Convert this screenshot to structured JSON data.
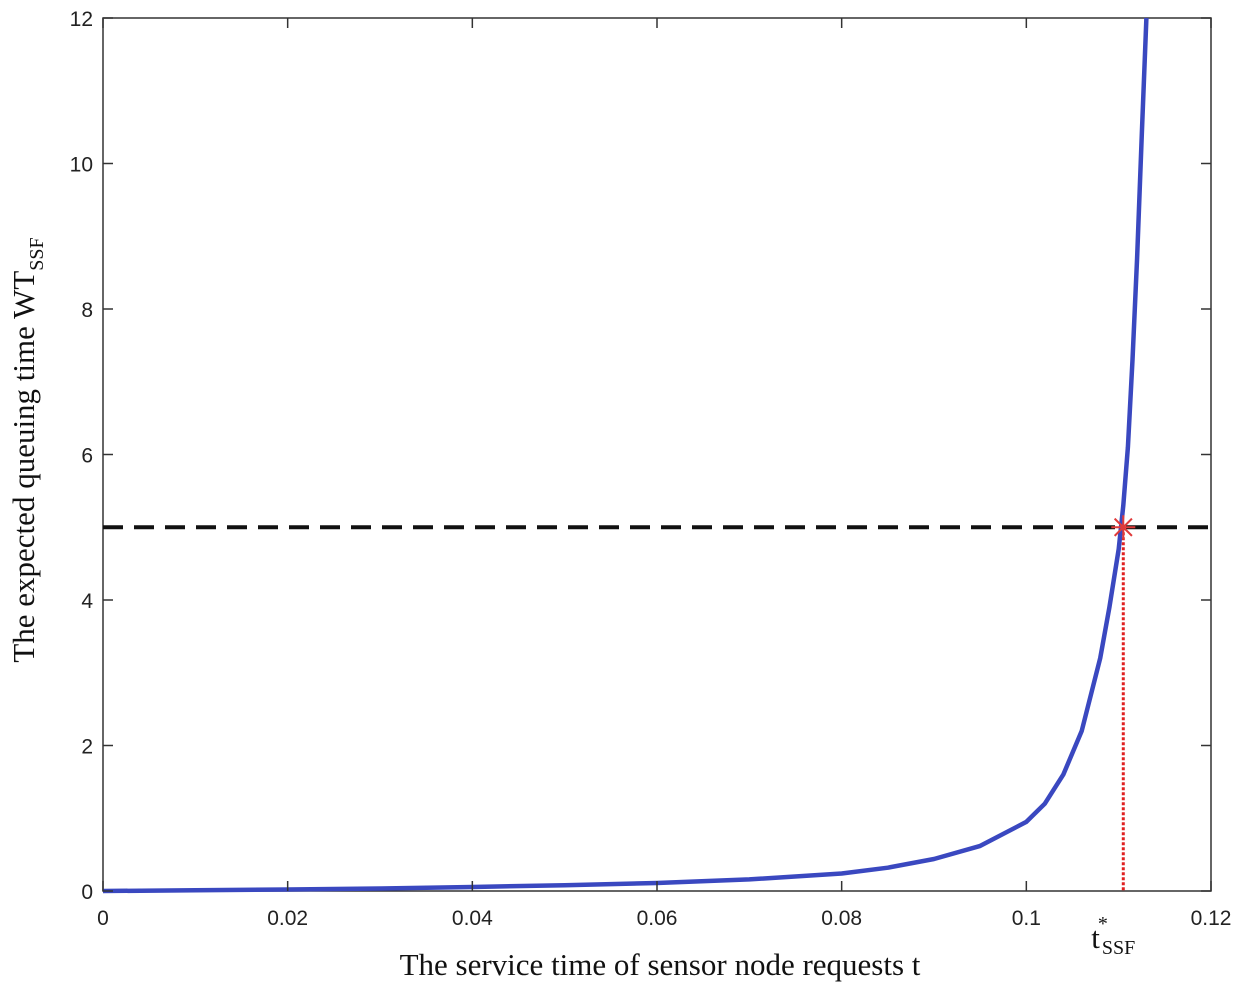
{
  "chart_data": {
    "type": "line",
    "title": "",
    "xlabel": "The service time of sensor node requests t",
    "ylabel_main": "The expected queuing time WT",
    "ylabel_sub": "SSF",
    "xlim": [
      0,
      0.12
    ],
    "ylim": [
      0,
      12
    ],
    "x_ticks": [
      0,
      0.02,
      0.04,
      0.06,
      0.08,
      0.1,
      0.12
    ],
    "x_tick_labels": [
      "0",
      "0.02",
      "0.04",
      "0.06",
      "0.08",
      "0.1",
      "0.12"
    ],
    "y_ticks": [
      0,
      2,
      4,
      6,
      8,
      10,
      12
    ],
    "y_tick_labels": [
      "0",
      "2",
      "4",
      "6",
      "8",
      "10",
      "12"
    ],
    "grid": false,
    "series": [
      {
        "name": "WT_SSF(t)",
        "color": "#3a48c0",
        "x": [
          0,
          0.01,
          0.02,
          0.03,
          0.04,
          0.05,
          0.06,
          0.07,
          0.08,
          0.085,
          0.09,
          0.095,
          0.1,
          0.102,
          0.104,
          0.106,
          0.108,
          0.109,
          0.11,
          0.1105,
          0.111,
          0.1115,
          0.112,
          0.1125,
          0.113
        ],
        "y": [
          0,
          0.01,
          0.02,
          0.035,
          0.055,
          0.08,
          0.11,
          0.16,
          0.24,
          0.32,
          0.44,
          0.62,
          0.95,
          1.2,
          1.6,
          2.2,
          3.2,
          3.9,
          4.7,
          5.3,
          6.1,
          7.3,
          8.7,
          10.4,
          12.0
        ]
      }
    ],
    "threshold": {
      "y": 5,
      "style": "dashed",
      "color": "#111111"
    },
    "marker": {
      "x": 0.1105,
      "y": 5,
      "symbol": "asterisk",
      "color": "#e03a3a"
    },
    "drop_line": {
      "x": 0.1105,
      "color": "#e02020",
      "style": "dotted"
    },
    "annotation": {
      "main": "t",
      "sup": "*",
      "sub": "SSF",
      "x": 0.1105
    }
  }
}
